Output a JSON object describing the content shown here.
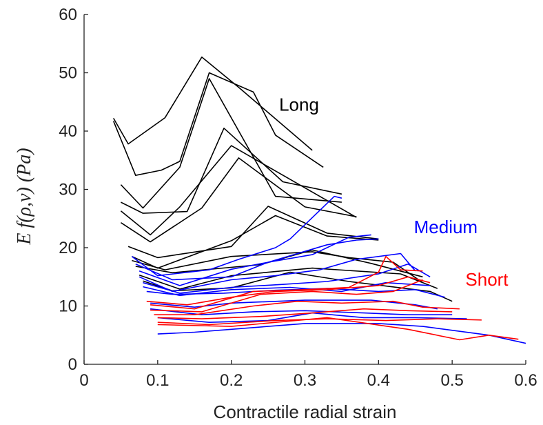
{
  "chart_data": {
    "type": "line",
    "xlabel": "Contractile radial strain",
    "ylabel": "E f(ρ,v) (Pa)",
    "xlim": [
      0,
      0.6
    ],
    "ylim": [
      0,
      60
    ],
    "xticks": [
      "0",
      "0.1",
      "0.2",
      "0.3",
      "0.4",
      "0.5",
      "0.6"
    ],
    "yticks": [
      "0",
      "10",
      "20",
      "30",
      "40",
      "50",
      "60"
    ],
    "grid": false,
    "annotations": [
      {
        "text": "Long",
        "x": 0.265,
        "y": 43.5,
        "color": "#000000"
      },
      {
        "text": "Medium",
        "x": 0.448,
        "y": 22.5,
        "color": "#0000ff"
      },
      {
        "text": "Short",
        "x": 0.518,
        "y": 13.5,
        "color": "#ff0000"
      }
    ],
    "series": [
      {
        "group": "Long",
        "color": "#000000",
        "points": [
          [
            0.04,
            42.2
          ],
          [
            0.06,
            37.8
          ],
          [
            0.11,
            42.3
          ],
          [
            0.16,
            52.7
          ],
          [
            0.21,
            47.5
          ],
          [
            0.31,
            36.7
          ]
        ]
      },
      {
        "group": "Long",
        "color": "#000000",
        "points": [
          [
            0.04,
            41.7
          ],
          [
            0.07,
            32.4
          ],
          [
            0.105,
            33.3
          ],
          [
            0.13,
            34.8
          ],
          [
            0.17,
            50.0
          ],
          [
            0.23,
            46.7
          ],
          [
            0.26,
            39.3
          ],
          [
            0.325,
            33.8
          ]
        ]
      },
      {
        "group": "Long",
        "color": "#000000",
        "points": [
          [
            0.05,
            30.8
          ],
          [
            0.08,
            26.8
          ],
          [
            0.13,
            33.8
          ],
          [
            0.17,
            49.0
          ],
          [
            0.26,
            28.8
          ],
          [
            0.35,
            27.8
          ]
        ]
      },
      {
        "group": "Long",
        "color": "#000000",
        "points": [
          [
            0.05,
            27.8
          ],
          [
            0.08,
            25.9
          ],
          [
            0.14,
            26.2
          ],
          [
            0.19,
            40.5
          ],
          [
            0.27,
            31.3
          ],
          [
            0.35,
            29.2
          ]
        ]
      },
      {
        "group": "Long",
        "color": "#000000",
        "points": [
          [
            0.05,
            26.3
          ],
          [
            0.09,
            22.2
          ],
          [
            0.13,
            27.0
          ],
          [
            0.2,
            37.5
          ],
          [
            0.37,
            25.2
          ]
        ]
      },
      {
        "group": "Long",
        "color": "#000000",
        "points": [
          [
            0.05,
            24.3
          ],
          [
            0.09,
            21.0
          ],
          [
            0.16,
            26.8
          ],
          [
            0.21,
            35.4
          ],
          [
            0.3,
            27.0
          ],
          [
            0.37,
            25.3
          ]
        ]
      },
      {
        "group": "Long",
        "color": "#000000",
        "points": [
          [
            0.06,
            20.2
          ],
          [
            0.1,
            18.3
          ],
          [
            0.2,
            20.2
          ],
          [
            0.25,
            27.1
          ],
          [
            0.33,
            22.5
          ],
          [
            0.4,
            21.5
          ]
        ]
      },
      {
        "group": "Long",
        "color": "#000000",
        "points": [
          [
            0.065,
            18.5
          ],
          [
            0.1,
            16.5
          ],
          [
            0.2,
            21.2
          ],
          [
            0.26,
            25.5
          ],
          [
            0.33,
            22.0
          ],
          [
            0.4,
            21.3
          ]
        ]
      },
      {
        "group": "Long",
        "color": "#000000",
        "points": [
          [
            0.065,
            17.8
          ],
          [
            0.11,
            16.2
          ],
          [
            0.2,
            18.5
          ],
          [
            0.31,
            19.3
          ],
          [
            0.36,
            18.3
          ],
          [
            0.42,
            17.5
          ],
          [
            0.46,
            14.0
          ]
        ]
      },
      {
        "group": "Long",
        "color": "#000000",
        "points": [
          [
            0.07,
            16.8
          ],
          [
            0.12,
            15.7
          ],
          [
            0.24,
            17.1
          ],
          [
            0.31,
            19.6
          ],
          [
            0.39,
            17.3
          ],
          [
            0.46,
            15.0
          ]
        ]
      },
      {
        "group": "Long",
        "color": "#000000",
        "points": [
          [
            0.075,
            15.3
          ],
          [
            0.13,
            12.9
          ],
          [
            0.2,
            15.2
          ],
          [
            0.31,
            16.5
          ],
          [
            0.43,
            15.5
          ],
          [
            0.48,
            13.0
          ]
        ]
      },
      {
        "group": "Long",
        "color": "#000000",
        "points": [
          [
            0.08,
            14.3
          ],
          [
            0.12,
            12.6
          ],
          [
            0.2,
            13.1
          ],
          [
            0.28,
            15.8
          ],
          [
            0.36,
            14.2
          ],
          [
            0.47,
            12.5
          ],
          [
            0.5,
            10.8
          ]
        ]
      },
      {
        "group": "Medium",
        "color": "#0000ff",
        "points": [
          [
            0.065,
            18.5
          ],
          [
            0.1,
            15.2
          ],
          [
            0.17,
            16.2
          ],
          [
            0.21,
            18.0
          ],
          [
            0.26,
            20.0
          ],
          [
            0.28,
            21.5
          ],
          [
            0.34,
            28.8
          ],
          [
            0.35,
            28.5
          ]
        ]
      },
      {
        "group": "Medium",
        "color": "#0000ff",
        "points": [
          [
            0.07,
            17.2
          ],
          [
            0.12,
            14.5
          ],
          [
            0.2,
            15.0
          ],
          [
            0.25,
            17.5
          ],
          [
            0.33,
            20.5
          ],
          [
            0.37,
            21.3
          ],
          [
            0.4,
            21.5
          ]
        ]
      },
      {
        "group": "Medium",
        "color": "#0000ff",
        "points": [
          [
            0.075,
            16.0
          ],
          [
            0.13,
            13.5
          ],
          [
            0.2,
            16.3
          ],
          [
            0.25,
            17.5
          ],
          [
            0.31,
            18.8
          ],
          [
            0.36,
            21.8
          ],
          [
            0.39,
            22.2
          ]
        ]
      },
      {
        "group": "Medium",
        "color": "#0000ff",
        "points": [
          [
            0.075,
            15.0
          ],
          [
            0.12,
            12.5
          ],
          [
            0.2,
            14.5
          ],
          [
            0.26,
            15.2
          ],
          [
            0.32,
            16.2
          ],
          [
            0.37,
            18.0
          ],
          [
            0.43,
            19.0
          ],
          [
            0.45,
            16.0
          ]
        ]
      },
      {
        "group": "Medium",
        "color": "#0000ff",
        "points": [
          [
            0.08,
            14.0
          ],
          [
            0.13,
            12.2
          ],
          [
            0.2,
            13.2
          ],
          [
            0.27,
            13.7
          ],
          [
            0.33,
            14.2
          ],
          [
            0.4,
            15.5
          ],
          [
            0.44,
            17.2
          ],
          [
            0.47,
            15.0
          ]
        ]
      },
      {
        "group": "Medium",
        "color": "#0000ff",
        "points": [
          [
            0.08,
            13.3
          ],
          [
            0.13,
            11.8
          ],
          [
            0.2,
            12.8
          ],
          [
            0.28,
            13.2
          ],
          [
            0.35,
            12.5
          ],
          [
            0.41,
            14.0
          ],
          [
            0.47,
            13.5
          ]
        ]
      },
      {
        "group": "Medium",
        "color": "#0000ff",
        "points": [
          [
            0.085,
            12.5
          ],
          [
            0.12,
            12.0
          ],
          [
            0.19,
            12.2
          ],
          [
            0.26,
            12.7
          ],
          [
            0.33,
            13.0
          ],
          [
            0.4,
            12.5
          ],
          [
            0.45,
            12.8
          ],
          [
            0.49,
            11.5
          ]
        ]
      },
      {
        "group": "Medium",
        "color": "#0000ff",
        "points": [
          [
            0.09,
            10.5
          ],
          [
            0.15,
            9.8
          ],
          [
            0.2,
            10.5
          ],
          [
            0.3,
            11.0
          ],
          [
            0.39,
            11.0
          ],
          [
            0.45,
            10.2
          ],
          [
            0.48,
            9.5
          ]
        ]
      },
      {
        "group": "Medium",
        "color": "#0000ff",
        "points": [
          [
            0.09,
            9.5
          ],
          [
            0.16,
            8.5
          ],
          [
            0.23,
            9.0
          ],
          [
            0.3,
            9.2
          ],
          [
            0.38,
            8.8
          ],
          [
            0.44,
            8.5
          ],
          [
            0.5,
            8.5
          ]
        ]
      },
      {
        "group": "Medium",
        "color": "#0000ff",
        "points": [
          [
            0.1,
            8.0
          ],
          [
            0.17,
            7.2
          ],
          [
            0.25,
            7.5
          ],
          [
            0.31,
            8.8
          ],
          [
            0.38,
            8.0
          ],
          [
            0.45,
            8.0
          ],
          [
            0.52,
            7.8
          ]
        ]
      },
      {
        "group": "Medium",
        "color": "#0000ff",
        "points": [
          [
            0.1,
            5.2
          ],
          [
            0.15,
            5.5
          ],
          [
            0.2,
            6.0
          ],
          [
            0.3,
            7.0
          ],
          [
            0.4,
            7.0
          ],
          [
            0.46,
            6.5
          ],
          [
            0.55,
            5.0
          ],
          [
            0.6,
            3.6
          ]
        ]
      },
      {
        "group": "Short",
        "color": "#ff0000",
        "points": [
          [
            0.085,
            10.8
          ],
          [
            0.14,
            10.2
          ],
          [
            0.2,
            11.5
          ],
          [
            0.26,
            12.5
          ],
          [
            0.33,
            12.8
          ],
          [
            0.4,
            13.5
          ],
          [
            0.44,
            15.0
          ],
          [
            0.47,
            14.0
          ]
        ]
      },
      {
        "group": "Short",
        "color": "#ff0000",
        "points": [
          [
            0.09,
            10.2
          ],
          [
            0.15,
            9.5
          ],
          [
            0.23,
            12.5
          ],
          [
            0.3,
            12.8
          ],
          [
            0.36,
            13.2
          ],
          [
            0.4,
            15.8
          ],
          [
            0.41,
            18.5
          ],
          [
            0.43,
            16.2
          ],
          [
            0.46,
            16.0
          ]
        ]
      },
      {
        "group": "Short",
        "color": "#ff0000",
        "points": [
          [
            0.09,
            9.3
          ],
          [
            0.16,
            9.0
          ],
          [
            0.24,
            12.0
          ],
          [
            0.31,
            12.5
          ],
          [
            0.37,
            12.0
          ],
          [
            0.42,
            12.5
          ],
          [
            0.46,
            14.5
          ]
        ]
      },
      {
        "group": "Short",
        "color": "#ff0000",
        "points": [
          [
            0.095,
            8.5
          ],
          [
            0.15,
            8.5
          ],
          [
            0.23,
            10.0
          ],
          [
            0.29,
            10.8
          ],
          [
            0.35,
            10.5
          ],
          [
            0.42,
            10.8
          ],
          [
            0.46,
            9.8
          ],
          [
            0.51,
            9.5
          ]
        ]
      },
      {
        "group": "Short",
        "color": "#ff0000",
        "points": [
          [
            0.1,
            8.0
          ],
          [
            0.16,
            7.8
          ],
          [
            0.24,
            8.2
          ],
          [
            0.31,
            8.8
          ],
          [
            0.38,
            9.5
          ],
          [
            0.44,
            9.2
          ],
          [
            0.5,
            9.0
          ]
        ]
      },
      {
        "group": "Short",
        "color": "#ff0000",
        "points": [
          [
            0.1,
            7.2
          ],
          [
            0.17,
            6.8
          ],
          [
            0.26,
            7.5
          ],
          [
            0.33,
            7.8
          ],
          [
            0.41,
            7.5
          ],
          [
            0.48,
            7.8
          ],
          [
            0.54,
            7.6
          ]
        ]
      },
      {
        "group": "Short",
        "color": "#ff0000",
        "points": [
          [
            0.1,
            6.8
          ],
          [
            0.2,
            6.5
          ],
          [
            0.33,
            8.0
          ],
          [
            0.44,
            6.0
          ],
          [
            0.51,
            4.2
          ],
          [
            0.55,
            5.0
          ],
          [
            0.59,
            4.3
          ]
        ]
      }
    ]
  }
}
